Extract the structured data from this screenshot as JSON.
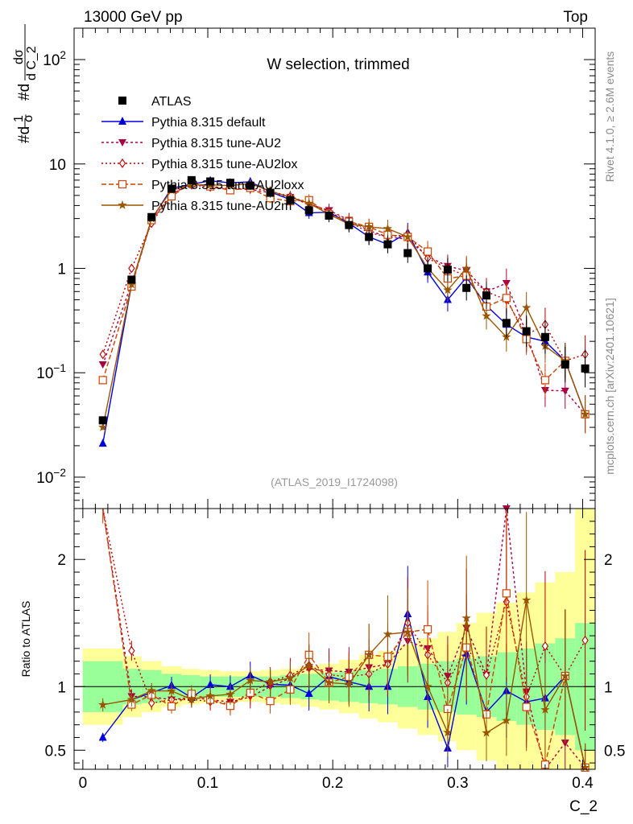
{
  "header": {
    "energy": "13000 GeV pp",
    "region": "Top"
  },
  "side_text": {
    "rivet": "Rivet 4.1.0, ≥ 2.6M events",
    "source": "mcplots.cern.ch [arXiv:2401.10621]"
  },
  "chart_data": {
    "type": "scatter",
    "title": "W selection, trimmed",
    "watermark": "(ATLAS_2019_I1724098)",
    "xlabel": "C_2",
    "ylabel_main": "#d1/σ #ddσ/dC_2",
    "ylabel_ratio": "Ratio to ATLAS",
    "xlim": [
      -0.007,
      0.41
    ],
    "ylim_main": [
      0.005,
      200
    ],
    "ylim_ratio": [
      0.35,
      2.4
    ],
    "yscale_main": "log",
    "x_ticks": [
      0,
      0.1,
      0.2,
      0.3,
      0.4
    ],
    "x_tick_labels": [
      "0",
      "0.1",
      "0.2",
      "0.3",
      "0.4"
    ],
    "y_ticks_main": [
      0.01,
      0.1,
      1,
      10,
      100
    ],
    "y_tick_labels_main": [
      "10^-2",
      "10^-1",
      "1",
      "10",
      "10^2"
    ],
    "y_ticks_ratio": [
      0.5,
      1,
      2
    ],
    "y_tick_labels_ratio": [
      "0.5",
      "1",
      "2"
    ],
    "x": [
      0.016,
      0.039,
      0.055,
      0.071,
      0.087,
      0.102,
      0.118,
      0.134,
      0.15,
      0.166,
      0.181,
      0.197,
      0.213,
      0.229,
      0.244,
      0.26,
      0.276,
      0.292,
      0.307,
      0.323,
      0.339,
      0.355,
      0.37,
      0.386,
      0.402
    ],
    "bin_edges": [
      0.0,
      0.032,
      0.047,
      0.063,
      0.079,
      0.094,
      0.11,
      0.126,
      0.142,
      0.158,
      0.174,
      0.189,
      0.205,
      0.221,
      0.236,
      0.252,
      0.268,
      0.284,
      0.299,
      0.315,
      0.331,
      0.347,
      0.362,
      0.378,
      0.394,
      0.41
    ],
    "band_inner": [
      0.2,
      0.14,
      0.13,
      0.1,
      0.09,
      0.08,
      0.08,
      0.08,
      0.08,
      0.09,
      0.1,
      0.11,
      0.12,
      0.13,
      0.14,
      0.16,
      0.18,
      0.2,
      0.22,
      0.24,
      0.27,
      0.3,
      0.34,
      0.38,
      0.5
    ],
    "band_outer": [
      0.3,
      0.24,
      0.2,
      0.16,
      0.14,
      0.13,
      0.12,
      0.12,
      0.13,
      0.14,
      0.16,
      0.18,
      0.21,
      0.25,
      0.28,
      0.33,
      0.38,
      0.43,
      0.5,
      0.58,
      0.66,
      0.74,
      0.82,
      0.9,
      1.4
    ],
    "legend_position": "top-left",
    "series": [
      {
        "name": "ATLAS",
        "color": "#000000",
        "marker": "square-filled",
        "dash": "none",
        "values": [
          0.035,
          0.78,
          3.1,
          5.8,
          7.0,
          6.8,
          6.6,
          6.2,
          5.3,
          4.5,
          3.6,
          3.2,
          2.6,
          2.0,
          1.7,
          1.4,
          1.0,
          0.97,
          0.65,
          0.55,
          0.3,
          0.25,
          0.22,
          0.12,
          0.11
        ]
      },
      {
        "name": "Pythia 8.315 default",
        "color": "#0000dd",
        "marker": "triangle-up",
        "dash": "none",
        "values": [
          0.021,
          0.7,
          2.95,
          5.85,
          6.4,
          6.9,
          6.6,
          6.75,
          5.4,
          4.55,
          3.4,
          3.45,
          2.7,
          2.0,
          1.7,
          2.2,
          0.92,
          0.5,
          0.82,
          0.44,
          0.29,
          0.22,
          0.2,
          0.13,
          0.04
        ]
      },
      {
        "name": "Pythia 8.315 tune-AU2",
        "color": "#aa0044",
        "marker": "triangle-down",
        "dash": "3,3",
        "values": [
          0.12,
          0.72,
          2.85,
          5.2,
          6.4,
          6.1,
          5.8,
          5.7,
          5.3,
          4.8,
          4.1,
          3.6,
          2.9,
          2.3,
          2.0,
          1.9,
          1.3,
          1.05,
          0.95,
          0.6,
          0.72,
          0.24,
          0.068,
          0.067,
          0.04
        ]
      },
      {
        "name": "Pythia 8.315 tune-AU2lox",
        "color": "#bb0000",
        "marker": "diamond-open",
        "dash": "2,3",
        "values": [
          0.15,
          1.0,
          2.7,
          5.2,
          6.3,
          6.0,
          5.7,
          5.9,
          5.5,
          4.9,
          4.2,
          3.5,
          2.8,
          2.2,
          2.0,
          2.1,
          1.25,
          1.0,
          0.85,
          0.6,
          0.5,
          0.23,
          0.29,
          0.13,
          0.15
        ]
      },
      {
        "name": "Pythia 8.315 tune-AU2loxx",
        "color": "#cc4400",
        "marker": "square-open",
        "dash": "6,3",
        "values": [
          0.085,
          0.67,
          2.9,
          4.9,
          6.6,
          6.1,
          5.6,
          5.9,
          4.7,
          4.4,
          4.5,
          3.3,
          2.8,
          2.5,
          2.1,
          2.0,
          1.45,
          0.8,
          0.85,
          0.43,
          0.52,
          0.21,
          0.085,
          0.13,
          0.04
        ]
      },
      {
        "name": "Pythia 8.315 tune-AU2m",
        "color": "#995500",
        "marker": "star",
        "dash": "none",
        "values": [
          0.03,
          0.7,
          3.0,
          5.6,
          6.3,
          6.3,
          6.2,
          6.5,
          5.5,
          4.8,
          4.2,
          3.3,
          2.65,
          2.5,
          2.4,
          2.0,
          1.0,
          0.62,
          1.0,
          0.35,
          0.22,
          0.42,
          0.18,
          0.13,
          0.04
        ]
      }
    ]
  }
}
